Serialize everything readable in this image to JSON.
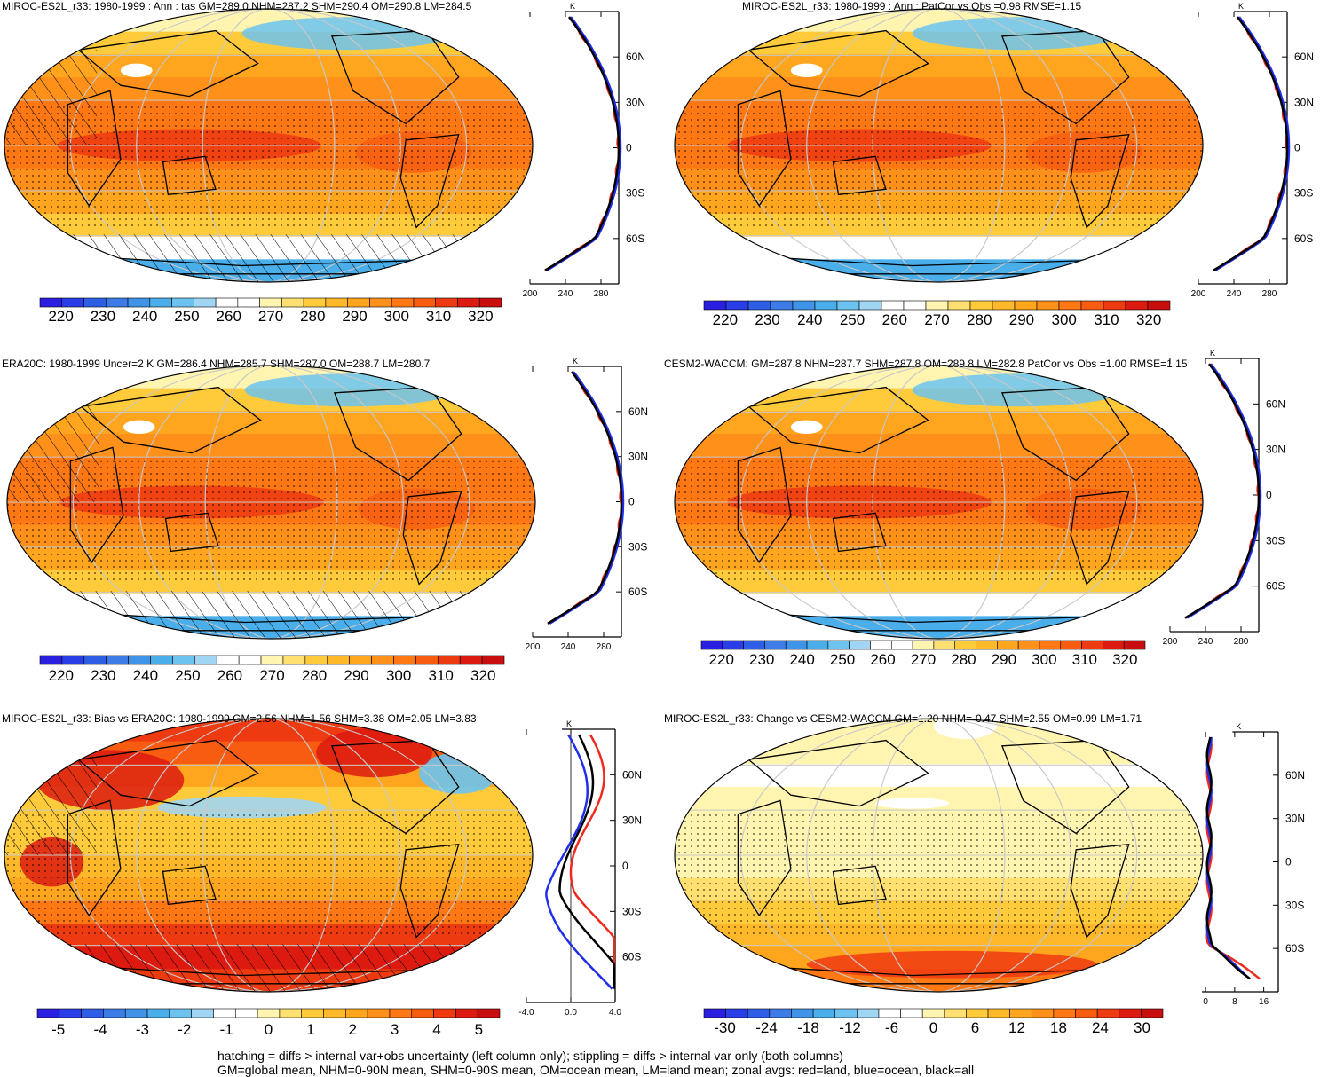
{
  "chart_data": [
    {
      "type": "heatmap",
      "title": "MIROC-ES2L_r33: 1980-1999 : Ann : tas GM=289.0 NHM=287.2 SHM=290.4 OM=290.8 LM=284.5",
      "colorbar": {
        "ticks": [
          "220",
          "230",
          "240",
          "250",
          "260",
          "270",
          "280",
          "290",
          "300",
          "310",
          "320"
        ],
        "range": [
          215,
          325
        ]
      },
      "zonal": {
        "unit": "K",
        "x_ticks": [
          "200",
          "240",
          "280"
        ],
        "x_range": [
          200,
          300
        ],
        "lat_ticks": [
          "60N",
          "30N",
          "0",
          "30S",
          "60S"
        ]
      },
      "hatching": true,
      "stippling": true
    },
    {
      "type": "heatmap",
      "title": "MIROC-ES2L_r33: 1980-1999 : Ann : PatCor vs Obs =0.98 RMSE=1.15",
      "colorbar": {
        "ticks": [
          "220",
          "230",
          "240",
          "250",
          "260",
          "270",
          "280",
          "290",
          "300",
          "310",
          "320"
        ],
        "range": [
          215,
          325
        ]
      },
      "zonal": {
        "unit": "K",
        "x_ticks": [
          "200",
          "240",
          "280"
        ],
        "x_range": [
          200,
          300
        ],
        "lat_ticks": [
          "60N",
          "30N",
          "0",
          "30S",
          "60S"
        ]
      },
      "hatching": false,
      "stippling": true
    },
    {
      "type": "heatmap",
      "title": "ERA20C: 1980-1999 Uncer=2 K GM=286.4 NHM=285.7 SHM=287.0 OM=288.7 LM=280.7",
      "colorbar": {
        "ticks": [
          "220",
          "230",
          "240",
          "250",
          "260",
          "270",
          "280",
          "290",
          "300",
          "310",
          "320"
        ],
        "range": [
          215,
          325
        ]
      },
      "zonal": {
        "unit": "K",
        "x_ticks": [
          "200",
          "240",
          "280"
        ],
        "x_range": [
          200,
          300
        ],
        "lat_ticks": [
          "60N",
          "30N",
          "0",
          "30S",
          "60S"
        ]
      },
      "hatching": true,
      "stippling": true
    },
    {
      "type": "heatmap",
      "title": "CESM2-WACCM: GM=287.8 NHM=287.7 SHM=287.8 OM=289.8 LM=282.8 PatCor vs Obs =1.00 RMSE=1.15",
      "colorbar": {
        "ticks": [
          "220",
          "230",
          "240",
          "250",
          "260",
          "270",
          "280",
          "290",
          "300",
          "310",
          "320"
        ],
        "range": [
          215,
          325
        ]
      },
      "zonal": {
        "unit": "K",
        "x_ticks": [
          "200",
          "240",
          "280"
        ],
        "x_range": [
          200,
          300
        ],
        "lat_ticks": [
          "60N",
          "30N",
          "0",
          "30S",
          "60S"
        ]
      },
      "hatching": false,
      "stippling": true
    },
    {
      "type": "heatmap",
      "title": "MIROC-ES2L_r33: Bias vs ERA20C: 1980-1999 GM=2.56 NHM=1.56 SHM=3.38 OM=2.05 LM=3.83",
      "colorbar": {
        "ticks": [
          "-5",
          "-4",
          "-3",
          "-2",
          "-1",
          "0",
          "1",
          "2",
          "3",
          "4",
          "5"
        ],
        "range": [
          -5.5,
          5.5
        ]
      },
      "zonal": {
        "unit": "K",
        "x_ticks": [
          "-4.0",
          "0.0",
          "4.0"
        ],
        "x_range": [
          -4,
          4
        ],
        "lat_ticks": [
          "60N",
          "30N",
          "0",
          "30S",
          "60S"
        ]
      },
      "hatching": true,
      "stippling": true
    },
    {
      "type": "heatmap",
      "title": "MIROC-ES2L_r33: Change vs CESM2-WACCM GM=1.20 NHM=-0.47 SHM=2.55 OM=0.99 LM=1.71",
      "colorbar": {
        "ticks": [
          "-30",
          "-24",
          "-18",
          "-12",
          "-6",
          "0",
          "6",
          "12",
          "18",
          "24",
          "30"
        ],
        "range": [
          -33,
          33
        ]
      },
      "zonal": {
        "unit": "K",
        "x_ticks": [
          "0",
          "8",
          "16"
        ],
        "x_range": [
          -1,
          20
        ],
        "lat_ticks": [
          "60N",
          "30N",
          "0",
          "30S",
          "60S"
        ]
      },
      "hatching": false,
      "stippling": true
    }
  ],
  "colors": {
    "palette": [
      "#2a1fe0",
      "#2a3ee8",
      "#2e5ee6",
      "#3d7be6",
      "#3f94e8",
      "#49aeea",
      "#6cc3f0",
      "#a0d6f4",
      "#ffffff",
      "#ffffff",
      "#fff4b0",
      "#ffe070",
      "#ffcb3a",
      "#ffb82a",
      "#ffa51e",
      "#ff901a",
      "#ff7814",
      "#f85c10",
      "#ee3a10",
      "#dc1a10",
      "#c80e0e"
    ],
    "land": "#ee2a1e",
    "ocean": "#1f2ee8",
    "all": "#000000",
    "grid": "#c8c8c8"
  },
  "footer": {
    "line1": "hatching = diffs > internal var+obs uncertainty (left column only); stippling = diffs > internal var only (both columns)",
    "line2": "GM=global mean, NHM=0-90N mean, SHM=0-90S mean, OM=ocean mean, LM=land mean; zonal avgs: red=land, blue=ocean, black=all"
  }
}
